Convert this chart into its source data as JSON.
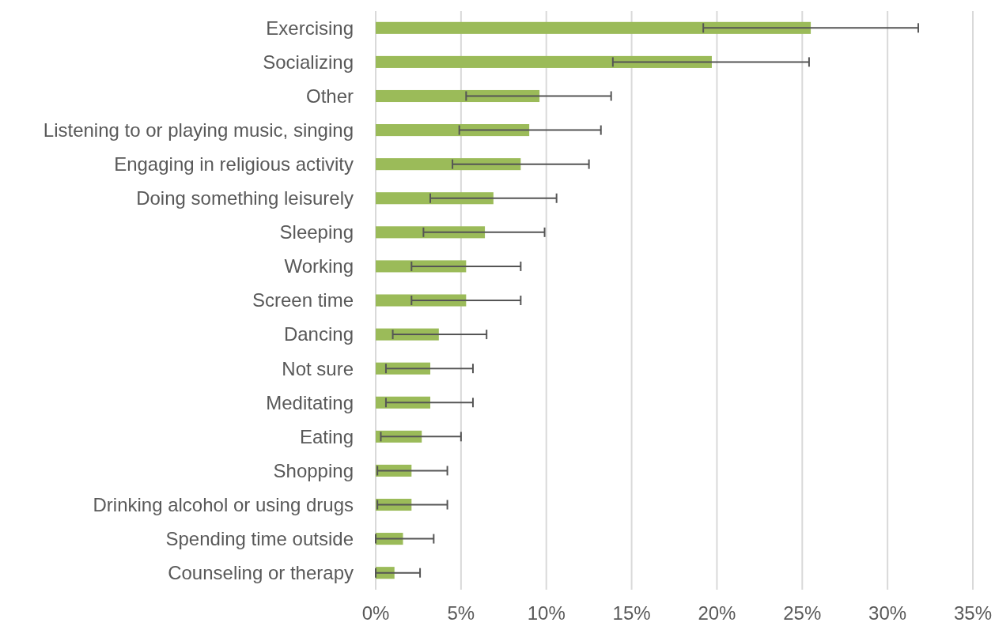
{
  "chart_data": {
    "type": "bar",
    "orientation": "horizontal",
    "categories": [
      "Exercising",
      "Socializing",
      "Other",
      "Listening to or playing music, singing",
      "Engaging in religious activity",
      "Doing something leisurely",
      "Sleeping",
      "Working",
      "Screen time",
      "Dancing",
      "Not sure",
      "Meditating",
      "Eating",
      "Shopping",
      "Drinking alcohol or using drugs",
      "Spending time outside",
      "Counseling or therapy"
    ],
    "values": [
      25.5,
      19.7,
      9.6,
      9.0,
      8.5,
      6.9,
      6.4,
      5.3,
      5.3,
      3.7,
      3.2,
      3.2,
      2.7,
      2.1,
      2.1,
      1.6,
      1.1
    ],
    "errors": [
      [
        19.2,
        31.8
      ],
      [
        13.9,
        25.4
      ],
      [
        5.3,
        13.8
      ],
      [
        4.9,
        13.2
      ],
      [
        4.5,
        12.5
      ],
      [
        3.2,
        10.6
      ],
      [
        2.8,
        9.9
      ],
      [
        2.1,
        8.5
      ],
      [
        2.1,
        8.5
      ],
      [
        1.0,
        6.5
      ],
      [
        0.6,
        5.7
      ],
      [
        0.6,
        5.7
      ],
      [
        0.3,
        5.0
      ],
      [
        0.1,
        4.2
      ],
      [
        0.1,
        4.2
      ],
      [
        0,
        3.4
      ],
      [
        0,
        2.6
      ]
    ],
    "color": "#9bbb59",
    "xlim": [
      0,
      35
    ],
    "xticks": [
      {
        "value": 0,
        "label": "0%"
      },
      {
        "value": 5,
        "label": "5%"
      },
      {
        "value": 10,
        "label": "10%"
      },
      {
        "value": 15,
        "label": "15%"
      },
      {
        "value": 20,
        "label": "20%"
      },
      {
        "value": 25,
        "label": "25%"
      },
      {
        "value": 30,
        "label": "30%"
      },
      {
        "value": 35,
        "label": "35%"
      }
    ],
    "grid": "x"
  }
}
